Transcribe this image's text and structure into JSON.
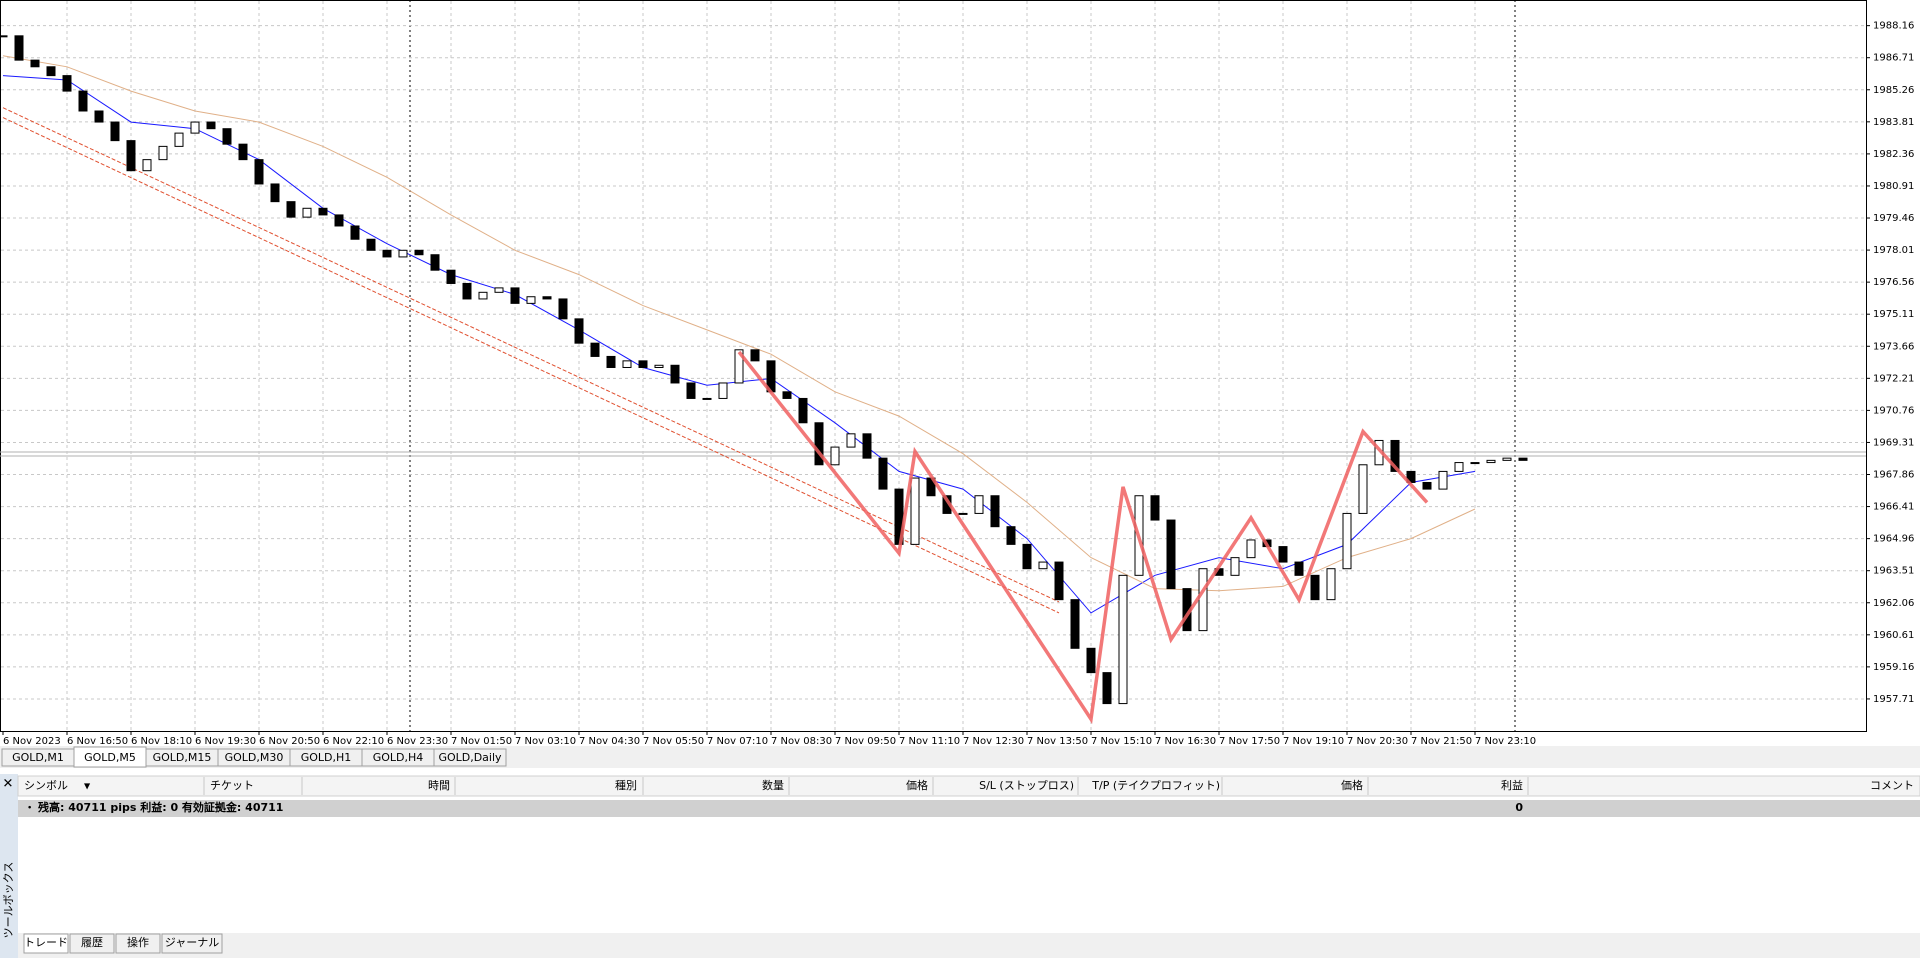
{
  "chart_data": {
    "type": "candlestick",
    "ylim": [
      1956.26,
      1989.32
    ],
    "yticks": [
      1988.16,
      1986.71,
      1985.26,
      1983.81,
      1982.36,
      1980.91,
      1979.46,
      1978.01,
      1976.56,
      1975.11,
      1973.66,
      1972.21,
      1970.76,
      1969.31,
      1967.86,
      1966.41,
      1964.96,
      1963.51,
      1962.06,
      1960.61,
      1959.16,
      1957.71
    ],
    "categories": [
      "6 Nov 2023",
      "6 Nov 16:50",
      "6 Nov 18:10",
      "6 Nov 19:30",
      "6 Nov 20:50",
      "6 Nov 22:10",
      "6 Nov 23:30",
      "7 Nov 01:50",
      "7 Nov 03:10",
      "7 Nov 04:30",
      "7 Nov 05:50",
      "7 Nov 07:10",
      "7 Nov 08:30",
      "7 Nov 09:50",
      "7 Nov 11:10",
      "7 Nov 12:30",
      "7 Nov 13:50",
      "7 Nov 15:10",
      "7 Nov 16:30",
      "7 Nov 17:50",
      "7 Nov 19:10",
      "7 Nov 20:30",
      "7 Nov 21:50",
      "7 Nov 23:10"
    ],
    "grid": true,
    "candle_color": "#000000",
    "close": [
      1987.7,
      1986.6,
      1986.3,
      1985.9,
      1985.2,
      1984.3,
      1983.8,
      1982.96,
      1981.6,
      1982.1,
      1982.7,
      1983.3,
      1983.8,
      1983.5,
      1982.8,
      1982.1,
      1981.0,
      1980.2,
      1979.5,
      1979.9,
      1979.6,
      1979.1,
      1978.5,
      1978.0,
      1977.7,
      1978.0,
      1977.8,
      1977.1,
      1976.5,
      1975.8,
      1976.1,
      1976.3,
      1975.6,
      1975.9,
      1975.8,
      1974.9,
      1973.8,
      1973.2,
      1972.7,
      1973.0,
      1972.7,
      1972.8,
      1972.0,
      1971.3,
      1971.3,
      1972.0,
      1973.5,
      1973.0,
      1971.6,
      1971.3,
      1970.2,
      1968.3,
      1969.1,
      1969.7,
      1968.6,
      1967.2,
      1964.7,
      1967.7,
      1966.9,
      1966.1,
      1966.1,
      1966.9,
      1965.5,
      1964.7,
      1963.6,
      1963.9,
      1962.2,
      1960.0,
      1958.9,
      1957.5,
      1963.3,
      1966.9,
      1965.8,
      1962.7,
      1960.8,
      1963.6,
      1963.3,
      1964.1,
      1964.9,
      1964.6,
      1963.9,
      1963.3,
      1962.2,
      1963.6,
      1966.1,
      1968.3,
      1969.4,
      1968.0,
      1967.5,
      1967.2,
      1968.0,
      1968.4,
      1968.4,
      1968.5,
      1968.6,
      1968.5
    ],
    "series": [
      {
        "color": "#1a1aff",
        "x": [
          0,
          4,
          8,
          12,
          16,
          20,
          24,
          28,
          32,
          36,
          40,
          44,
          48,
          52,
          56,
          60,
          64,
          68,
          72,
          76,
          80,
          84,
          88,
          92
        ],
        "values": [
          1985.9,
          1985.7,
          1983.8,
          1983.5,
          1982.1,
          1979.9,
          1978.3,
          1976.9,
          1976.0,
          1974.4,
          1972.7,
          1971.9,
          1972.2,
          1970.2,
          1968.0,
          1967.2,
          1964.96,
          1961.6,
          1963.3,
          1964.1,
          1963.6,
          1964.7,
          1967.5,
          1968.0
        ]
      },
      {
        "color": "#e0b088",
        "x": [
          0,
          4,
          8,
          12,
          16,
          20,
          24,
          28,
          32,
          36,
          40,
          44,
          48,
          52,
          56,
          60,
          64,
          68,
          72,
          76,
          80,
          84,
          88,
          92
        ],
        "values": [
          1986.8,
          1986.3,
          1985.2,
          1984.3,
          1983.8,
          1982.7,
          1981.3,
          1979.6,
          1978.0,
          1976.9,
          1975.5,
          1974.4,
          1973.3,
          1971.6,
          1970.5,
          1968.8,
          1966.6,
          1964.1,
          1962.7,
          1962.6,
          1962.8,
          1964.1,
          1964.96,
          1966.3
        ]
      }
    ],
    "zigzag": {
      "color": "#f06060",
      "x": [
        46,
        56,
        57,
        68,
        70,
        73,
        78,
        81,
        85,
        89
      ],
      "values": [
        1973.4,
        1964.3,
        1968.9,
        1956.8,
        1967.3,
        1960.4,
        1965.9,
        1962.2,
        1969.8,
        1966.6
      ]
    },
    "channel": [
      {
        "color": "#e05030",
        "x": [
          0,
          66
        ],
        "values": [
          1984.45,
          1962.1
        ]
      },
      {
        "color": "#e05030",
        "x": [
          0,
          66
        ],
        "values": [
          1984.0,
          1961.6
        ]
      }
    ]
  },
  "symbol_tabs": [
    "GOLD,M1",
    "GOLD,M5",
    "GOLD,M15",
    "GOLD,M30",
    "GOLD,H1",
    "GOLD,H4",
    "GOLD,Daily"
  ],
  "active_tab_index": 1,
  "terminal": {
    "columns": [
      "シンボル",
      "チケット",
      "時間",
      "種別",
      "数量",
      "価格",
      "S/L (ストップロス)",
      "T/P (テイクプロフィット)",
      "価格",
      "利益",
      "コメント"
    ],
    "balance_row": {
      "text": "残高: 40711 pips  利益: 0  有効証拠金: 40711",
      "profit": "0"
    },
    "side_label": "ツールボックス",
    "tabs": [
      "トレード",
      "履歴",
      "操作",
      "ジャーナル"
    ]
  }
}
